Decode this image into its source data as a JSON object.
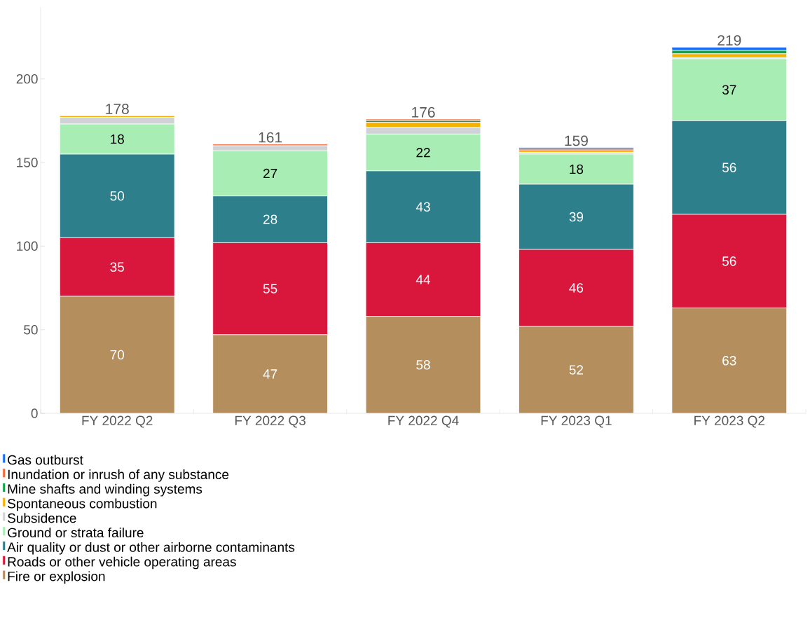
{
  "chart_data": {
    "type": "bar",
    "stacked": true,
    "categories": [
      "FY 2022 Q2",
      "FY 2022 Q3",
      "FY 2022 Q4",
      "FY 2023 Q1",
      "FY 2023 Q2"
    ],
    "series": [
      {
        "name": "Fire or explosion",
        "color": "#b58e5e",
        "values": [
          70,
          47,
          58,
          52,
          63
        ],
        "value_labels": [
          "70",
          "47",
          "58",
          "52",
          "63"
        ]
      },
      {
        "name": "Roads or other vehicle operating areas",
        "color": "#d9163c",
        "values": [
          35,
          55,
          44,
          46,
          56
        ],
        "value_labels": [
          "35",
          "55",
          "44",
          "46",
          "56"
        ]
      },
      {
        "name": "Air quality or dust or other airborne contaminants",
        "color": "#2e7f8c",
        "values": [
          50,
          28,
          43,
          39,
          56
        ],
        "value_labels": [
          "50",
          "28",
          "43",
          "39",
          "56"
        ]
      },
      {
        "name": "Ground or strata failure",
        "color": "#a8edb3",
        "values": [
          18,
          27,
          22,
          18,
          37
        ],
        "value_labels": [
          "18",
          "27",
          "22",
          "18",
          "37"
        ]
      },
      {
        "name": "Subsidence",
        "color": "#cfd3d6",
        "values": [
          4,
          3,
          4,
          1,
          1
        ]
      },
      {
        "name": "Spontaneous combustion",
        "color": "#f5b000",
        "values": [
          1,
          0,
          3,
          1,
          2
        ]
      },
      {
        "name": "Mine shafts and winding systems",
        "color": "#0aa44a",
        "values": [
          0,
          0,
          1,
          0,
          2
        ]
      },
      {
        "name": "Inundation or inrush of any substance",
        "color": "#f26b3a",
        "values": [
          0,
          1,
          1,
          1,
          0
        ]
      },
      {
        "name": "Gas outburst",
        "color": "#1a6ef5",
        "values": [
          0,
          0,
          0,
          1,
          2
        ]
      }
    ],
    "totals": [
      "178",
      "161",
      "176",
      "159",
      "219"
    ],
    "ylim": [
      0,
      243
    ],
    "yticks": [
      0,
      50,
      100,
      150,
      200
    ],
    "legend": "bottom",
    "grid": false
  }
}
